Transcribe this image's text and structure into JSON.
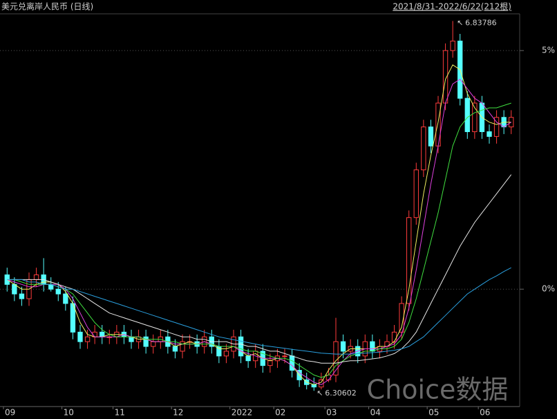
{
  "chart_data": {
    "type": "candlestick",
    "title": "美元兑离岸人民币 (日线)",
    "range_label": "2021/8/31-2022/6/22(212根)",
    "watermark": "Choice数据",
    "annotations": {
      "high": "6.83786",
      "low": "6.30602"
    },
    "ylim": [
      -2.46,
      5.77
    ],
    "yticks": [
      {
        "value": 0,
        "label": "0%"
      },
      {
        "value": 5,
        "label": "5%"
      }
    ],
    "grid": true,
    "up_color": "#ff3c3c",
    "down_color": "#54ffff",
    "categories": [
      "09",
      null,
      null,
      null,
      null,
      null,
      null,
      null,
      "10",
      null,
      null,
      null,
      null,
      null,
      null,
      "11",
      null,
      null,
      null,
      null,
      null,
      null,
      null,
      "12",
      null,
      null,
      null,
      null,
      null,
      null,
      null,
      "2022",
      null,
      null,
      null,
      null,
      null,
      "02",
      null,
      null,
      null,
      null,
      null,
      null,
      "03",
      null,
      null,
      null,
      null,
      null,
      "04",
      null,
      null,
      null,
      null,
      null,
      null,
      null,
      "05",
      null,
      null,
      null,
      null,
      null,
      null,
      "06",
      null,
      null,
      null,
      null
    ],
    "open": [
      0.3,
      0.1,
      -0.1,
      -0.2,
      0.2,
      0.3,
      0.1,
      0.0,
      -0.1,
      -0.3,
      -0.9,
      -1.1,
      -1.0,
      -0.9,
      -1.0,
      -1.0,
      -0.9,
      -1.0,
      -1.1,
      -1.0,
      -1.2,
      -1.1,
      -1.0,
      -1.2,
      -1.3,
      -1.1,
      -1.1,
      -1.2,
      -1.0,
      -1.2,
      -1.4,
      -1.3,
      -1.0,
      -1.4,
      -1.5,
      -1.3,
      -1.6,
      -1.5,
      -1.4,
      -1.4,
      -1.7,
      -1.9,
      -2.0,
      -2.05,
      -1.9,
      -1.8,
      -1.1,
      -1.3,
      -1.2,
      -1.4,
      -1.1,
      -1.3,
      -1.2,
      -1.1,
      -0.9,
      -0.3,
      1.5,
      2.5,
      3.4,
      3.0,
      3.9,
      5.0,
      5.2,
      4.0,
      3.3,
      3.9,
      3.3,
      3.2,
      3.6,
      3.4
    ],
    "high": [
      0.45,
      0.25,
      0.05,
      0.35,
      0.45,
      0.65,
      0.25,
      0.15,
      0.05,
      -0.15,
      -0.75,
      -0.85,
      -0.75,
      -0.75,
      -0.85,
      -0.75,
      -0.75,
      -0.85,
      -0.85,
      -0.85,
      -0.95,
      -0.85,
      -0.85,
      -1.05,
      -0.95,
      -0.95,
      -0.95,
      -0.85,
      -0.85,
      -1.05,
      -1.15,
      -0.85,
      -0.85,
      -1.25,
      -1.15,
      -1.15,
      -1.35,
      -1.25,
      -1.25,
      -1.25,
      -1.55,
      -1.75,
      -1.85,
      -1.75,
      -1.65,
      -0.6,
      -0.95,
      -1.05,
      -1.05,
      -0.95,
      -0.95,
      -1.05,
      -0.95,
      -0.75,
      -0.15,
      1.65,
      2.65,
      3.55,
      3.55,
      4.05,
      5.15,
      5.62,
      5.35,
      4.15,
      4.05,
      4.05,
      3.45,
      3.75,
      3.75,
      3.75
    ],
    "low": [
      -0.05,
      -0.25,
      -0.35,
      -0.35,
      0.05,
      -0.05,
      -0.05,
      -0.25,
      -0.45,
      -1.05,
      -1.25,
      -1.25,
      -1.15,
      -1.15,
      -1.15,
      -1.15,
      -1.15,
      -1.25,
      -1.25,
      -1.35,
      -1.35,
      -1.25,
      -1.35,
      -1.45,
      -1.45,
      -1.25,
      -1.35,
      -1.35,
      -1.35,
      -1.55,
      -1.55,
      -1.45,
      -1.55,
      -1.65,
      -1.65,
      -1.75,
      -1.75,
      -1.65,
      -1.55,
      -1.85,
      -2.05,
      -2.1,
      -2.13,
      -2.1,
      -1.95,
      -1.95,
      -1.45,
      -1.45,
      -1.55,
      -1.55,
      -1.45,
      -1.45,
      -1.35,
      -1.25,
      -1.05,
      -0.45,
      1.35,
      2.35,
      2.85,
      2.85,
      3.75,
      4.85,
      3.85,
      3.15,
      3.15,
      3.15,
      3.05,
      3.05,
      3.25,
      3.25
    ],
    "close": [
      0.1,
      -0.1,
      -0.2,
      0.2,
      0.3,
      0.1,
      0.0,
      -0.1,
      -0.3,
      -0.9,
      -1.1,
      -1.0,
      -0.9,
      -1.0,
      -1.0,
      -0.9,
      -1.0,
      -1.1,
      -1.0,
      -1.2,
      -1.1,
      -1.0,
      -1.2,
      -1.3,
      -1.1,
      -1.1,
      -1.2,
      -1.0,
      -1.2,
      -1.4,
      -1.3,
      -1.0,
      -1.4,
      -1.5,
      -1.3,
      -1.6,
      -1.5,
      -1.4,
      -1.4,
      -1.7,
      -1.9,
      -2.0,
      -2.05,
      -1.9,
      -1.8,
      -1.1,
      -1.3,
      -1.2,
      -1.4,
      -1.1,
      -1.3,
      -1.2,
      -1.1,
      -0.9,
      -0.3,
      1.5,
      2.5,
      3.4,
      3.0,
      3.9,
      5.0,
      5.2,
      4.0,
      3.3,
      3.9,
      3.3,
      3.2,
      3.6,
      3.4,
      3.6
    ],
    "series": [
      {
        "color": "#f0f060",
        "values": [
          0.2,
          0.1,
          0.0,
          0.0,
          0.1,
          0.15,
          0.15,
          0.1,
          -0.05,
          -0.3,
          -0.7,
          -0.95,
          -1.0,
          -1.0,
          -0.95,
          -0.95,
          -0.95,
          -1.0,
          -1.05,
          -1.05,
          -1.1,
          -1.1,
          -1.1,
          -1.2,
          -1.15,
          -1.1,
          -1.15,
          -1.1,
          -1.15,
          -1.25,
          -1.25,
          -1.2,
          -1.3,
          -1.4,
          -1.35,
          -1.45,
          -1.5,
          -1.45,
          -1.5,
          -1.6,
          -1.8,
          -1.95,
          -2.0,
          -1.95,
          -1.7,
          -1.5,
          -1.35,
          -1.25,
          -1.25,
          -1.25,
          -1.25,
          -1.2,
          -1.2,
          -1.1,
          -0.8,
          0.0,
          1.0,
          2.0,
          2.8,
          3.5,
          4.4,
          4.7,
          4.6,
          4.1,
          3.8,
          3.6,
          3.5,
          3.45,
          3.5,
          3.5
        ]
      },
      {
        "color": "#e040e0",
        "values": [
          0.2,
          0.15,
          0.1,
          0.05,
          0.05,
          0.1,
          0.1,
          0.1,
          0.0,
          -0.2,
          -0.5,
          -0.8,
          -1.0,
          -1.0,
          -1.0,
          -1.0,
          -0.95,
          -1.0,
          -1.0,
          -1.05,
          -1.1,
          -1.1,
          -1.1,
          -1.15,
          -1.15,
          -1.15,
          -1.15,
          -1.1,
          -1.15,
          -1.2,
          -1.2,
          -1.2,
          -1.3,
          -1.35,
          -1.4,
          -1.45,
          -1.45,
          -1.45,
          -1.5,
          -1.6,
          -1.75,
          -1.85,
          -1.95,
          -2.0,
          -1.9,
          -1.7,
          -1.5,
          -1.35,
          -1.3,
          -1.25,
          -1.25,
          -1.25,
          -1.2,
          -1.15,
          -0.95,
          -0.4,
          0.4,
          1.3,
          2.2,
          3.0,
          3.9,
          4.3,
          4.4,
          4.2,
          4.0,
          3.9,
          3.7,
          3.5,
          3.4,
          3.5
        ]
      },
      {
        "color": "#40e040",
        "values": [
          0.2,
          0.2,
          0.15,
          0.1,
          0.1,
          0.1,
          0.1,
          0.05,
          0.0,
          -0.1,
          -0.3,
          -0.5,
          -0.7,
          -0.85,
          -0.95,
          -1.0,
          -1.0,
          -1.0,
          -1.0,
          -1.05,
          -1.05,
          -1.05,
          -1.1,
          -1.1,
          -1.15,
          -1.15,
          -1.15,
          -1.15,
          -1.15,
          -1.2,
          -1.2,
          -1.2,
          -1.25,
          -1.3,
          -1.3,
          -1.35,
          -1.4,
          -1.45,
          -1.45,
          -1.5,
          -1.6,
          -1.7,
          -1.8,
          -1.85,
          -1.8,
          -1.6,
          -1.5,
          -1.4,
          -1.35,
          -1.3,
          -1.3,
          -1.25,
          -1.25,
          -1.2,
          -1.05,
          -0.7,
          -0.2,
          0.4,
          1.0,
          1.6,
          2.3,
          3.0,
          3.4,
          3.6,
          3.7,
          3.75,
          3.8,
          3.8,
          3.85,
          3.9
        ]
      },
      {
        "color": "#e8e8e8",
        "values": [
          0.2,
          0.2,
          0.2,
          0.2,
          0.2,
          0.2,
          0.15,
          0.1,
          0.05,
          0.0,
          -0.1,
          -0.2,
          -0.3,
          -0.4,
          -0.5,
          -0.55,
          -0.6,
          -0.65,
          -0.7,
          -0.75,
          -0.8,
          -0.85,
          -0.9,
          -0.95,
          -1.0,
          -1.0,
          -1.05,
          -1.05,
          -1.1,
          -1.1,
          -1.1,
          -1.15,
          -1.15,
          -1.2,
          -1.2,
          -1.25,
          -1.3,
          -1.3,
          -1.35,
          -1.4,
          -1.45,
          -1.5,
          -1.52,
          -1.55,
          -1.55,
          -1.55,
          -1.52,
          -1.5,
          -1.5,
          -1.48,
          -1.46,
          -1.44,
          -1.4,
          -1.35,
          -1.25,
          -1.1,
          -0.9,
          -0.6,
          -0.3,
          0.0,
          0.3,
          0.6,
          0.9,
          1.15,
          1.4,
          1.6,
          1.8,
          2.0,
          2.2,
          2.4
        ]
      },
      {
        "color": "#2aa0e0",
        "values": [
          0.2,
          0.2,
          0.2,
          0.15,
          0.15,
          0.1,
          0.1,
          0.05,
          0.0,
          0.0,
          -0.05,
          -0.1,
          -0.15,
          -0.2,
          -0.25,
          -0.3,
          -0.35,
          -0.4,
          -0.45,
          -0.5,
          -0.55,
          -0.6,
          -0.65,
          -0.7,
          -0.75,
          -0.8,
          -0.85,
          -0.9,
          -0.95,
          -1.0,
          -1.03,
          -1.06,
          -1.09,
          -1.12,
          -1.15,
          -1.18,
          -1.2,
          -1.22,
          -1.24,
          -1.26,
          -1.28,
          -1.3,
          -1.32,
          -1.34,
          -1.35,
          -1.36,
          -1.36,
          -1.36,
          -1.35,
          -1.34,
          -1.33,
          -1.32,
          -1.3,
          -1.28,
          -1.25,
          -1.2,
          -1.1,
          -1.0,
          -0.85,
          -0.7,
          -0.55,
          -0.4,
          -0.25,
          -0.1,
          0.0,
          0.1,
          0.2,
          0.28,
          0.37,
          0.45
        ]
      }
    ]
  }
}
